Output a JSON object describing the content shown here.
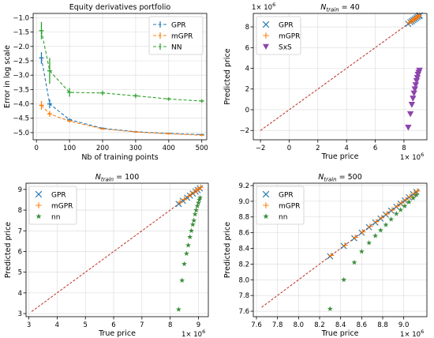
{
  "chart_data": [
    {
      "type": "line",
      "title": "Equity derivatives portfolio",
      "xlabel": "Nb of training points",
      "ylabel": "Error in log scale",
      "xlim": [
        -10,
        515
      ],
      "ylim": [
        -5.25,
        -0.85
      ],
      "xticks": [
        0,
        100,
        200,
        300,
        400,
        500
      ],
      "yticks": [
        -5.0,
        -4.5,
        -4.0,
        -3.5,
        -3.0,
        -2.5,
        -2.0,
        -1.5,
        -1.0
      ],
      "ytick_labels": [
        "−5.0",
        "−4.5",
        "−4.0",
        "−3.5",
        "−3.0",
        "−2.5",
        "−2.0",
        "−1.5",
        "−1.0"
      ],
      "grid": true,
      "legend_position": "top-right",
      "series": [
        {
          "name": "GPR",
          "color": "#1f77b4",
          "x": [
            15,
            40,
            100,
            200,
            300,
            400,
            500
          ],
          "y": [
            -2.4,
            -4.0,
            -4.55,
            -4.85,
            -4.97,
            -5.03,
            -5.07
          ],
          "err": [
            0.2,
            0.15,
            0.05,
            0.03,
            0.03,
            0.03,
            0.03
          ]
        },
        {
          "name": "mGPR",
          "color": "#ff7f0e",
          "x": [
            15,
            40,
            100,
            200,
            300,
            400,
            500
          ],
          "y": [
            -4.05,
            -4.35,
            -4.6,
            -4.87,
            -4.98,
            -5.04,
            -5.09
          ],
          "err": [
            0.15,
            0.1,
            0.05,
            0.03,
            0.03,
            0.03,
            0.03
          ]
        },
        {
          "name": "NN",
          "color": "#2ca02c",
          "x": [
            15,
            40,
            100,
            200,
            300,
            400,
            500
          ],
          "y": [
            -1.45,
            -2.85,
            -3.6,
            -3.62,
            -3.72,
            -3.83,
            -3.9
          ],
          "err": [
            0.3,
            0.45,
            0.15,
            0.08,
            0.08,
            0.06,
            0.06
          ]
        }
      ]
    },
    {
      "type": "scatter",
      "title_main": "N",
      "title_sub": "train",
      "title_rest": " = 40",
      "xlabel": "True price",
      "ylabel": "Predicted price",
      "xlim": [
        -2.5,
        9.6
      ],
      "ylim": [
        -2.9,
        9.3
      ],
      "xticks": [
        -2,
        0,
        2,
        4,
        6,
        8
      ],
      "xtick_labels": [
        "−2",
        "0",
        "2",
        "4",
        "6",
        "8"
      ],
      "yticks": [
        -2,
        0,
        2,
        4,
        6,
        8
      ],
      "ytick_labels": [
        "−2",
        "0",
        "2",
        "4",
        "6",
        "8"
      ],
      "multiplier_x": "1",
      "multiplier_y": "1",
      "multiplier_base": "× 10",
      "multiplier_exp": "6",
      "grid": true,
      "legend_position": "top-left",
      "diagonal": [
        -2,
        9
      ],
      "series": [
        {
          "name": "GPR",
          "marker": "x",
          "color": "#1f77b4",
          "x": [
            8.3,
            8.45,
            8.55,
            8.65,
            8.75,
            8.85,
            8.95,
            9.05,
            9.1
          ],
          "y": [
            8.3,
            8.45,
            8.55,
            8.65,
            8.75,
            8.85,
            8.95,
            9.05,
            9.1
          ]
        },
        {
          "name": "mGPR",
          "marker": "+",
          "color": "#ff7f0e",
          "x": [
            8.35,
            8.5,
            8.6,
            8.7,
            8.8,
            8.9,
            9.0,
            9.08
          ],
          "y": [
            8.4,
            8.55,
            8.62,
            8.72,
            8.82,
            8.92,
            9.02,
            9.1
          ]
        },
        {
          "name": "SxS",
          "marker": "v",
          "color": "#8e44ad",
          "x": [
            8.3,
            8.45,
            8.55,
            8.63,
            8.7,
            8.76,
            8.82,
            8.88,
            8.93,
            8.98,
            9.03,
            9.08
          ],
          "y": [
            -1.7,
            -0.4,
            0.5,
            1.1,
            1.6,
            2.0,
            2.4,
            2.8,
            3.1,
            3.4,
            3.6,
            3.8
          ]
        }
      ]
    },
    {
      "type": "scatter",
      "title_main": "N",
      "title_sub": "train",
      "title_rest": " = 100",
      "xlabel": "True price",
      "ylabel": "Predicted price",
      "xlim": [
        2.9,
        9.35
      ],
      "ylim": [
        2.85,
        9.3
      ],
      "xticks": [
        3,
        4,
        5,
        6,
        7,
        8,
        9
      ],
      "yticks": [
        3,
        4,
        5,
        6,
        7,
        8,
        9
      ],
      "multiplier_x": "1",
      "multiplier_base": "× 10",
      "multiplier_exp": "6",
      "grid": true,
      "legend_position": "top-left",
      "diagonal": [
        3.1,
        9.1
      ],
      "series": [
        {
          "name": "GPR",
          "marker": "x",
          "color": "#1f77b4",
          "x": [
            8.3,
            8.45,
            8.6,
            8.7,
            8.8,
            8.9,
            8.97,
            9.05
          ],
          "y": [
            8.3,
            8.45,
            8.6,
            8.7,
            8.8,
            8.9,
            8.97,
            9.05
          ]
        },
        {
          "name": "mGPR",
          "marker": "+",
          "color": "#ff7f0e",
          "x": [
            8.35,
            8.5,
            8.65,
            8.75,
            8.85,
            8.95,
            9.0,
            9.08
          ],
          "y": [
            8.38,
            8.52,
            8.67,
            8.77,
            8.87,
            8.97,
            9.02,
            9.1
          ]
        },
        {
          "name": "nn",
          "marker": "*",
          "color": "#3d8f3d",
          "x": [
            8.3,
            8.42,
            8.5,
            8.58,
            8.64,
            8.7,
            8.75,
            8.8,
            8.84,
            8.88,
            8.92,
            8.96,
            9.0,
            9.03,
            9.06
          ],
          "y": [
            3.2,
            4.6,
            5.4,
            5.9,
            6.3,
            6.7,
            7.0,
            7.3,
            7.5,
            7.8,
            8.0,
            8.2,
            8.35,
            8.5,
            8.6
          ]
        }
      ]
    },
    {
      "type": "scatter",
      "title_main": "N",
      "title_sub": "train",
      "title_rest": " = 500",
      "xlabel": "True price",
      "ylabel": "Predicted price",
      "xlim": [
        7.57,
        9.22
      ],
      "ylim": [
        7.53,
        9.23
      ],
      "xticks": [
        7.6,
        7.8,
        8.0,
        8.2,
        8.4,
        8.6,
        8.8,
        9.0
      ],
      "xtick_labels": [
        "7.6",
        "7.8",
        "8.0",
        "8.2",
        "8.4",
        "8.6",
        "8.8",
        "9.0"
      ],
      "yticks": [
        7.6,
        7.8,
        8.0,
        8.2,
        8.4,
        8.6,
        8.8,
        9.0,
        9.2
      ],
      "ytick_labels": [
        "7.6",
        "7.8",
        "8.0",
        "8.2",
        "8.4",
        "8.6",
        "8.8",
        "9.0",
        "9.2"
      ],
      "multiplier_x": "1",
      "multiplier_base": "× 10",
      "multiplier_exp": "6",
      "grid": true,
      "legend_position": "top-left",
      "diagonal": [
        7.65,
        9.15
      ],
      "series": [
        {
          "name": "GPR",
          "marker": "x",
          "color": "#1f77b4",
          "x": [
            8.3,
            8.43,
            8.53,
            8.6,
            8.67,
            8.73,
            8.78,
            8.83,
            8.88,
            8.93,
            8.97,
            9.01,
            9.05,
            9.09,
            9.12
          ],
          "y": [
            8.3,
            8.43,
            8.53,
            8.6,
            8.67,
            8.73,
            8.78,
            8.83,
            8.88,
            8.93,
            8.97,
            9.01,
            9.05,
            9.09,
            9.12
          ]
        },
        {
          "name": "mGPR",
          "marker": "+",
          "color": "#ff7f0e",
          "x": [
            8.31,
            8.44,
            8.54,
            8.61,
            8.68,
            8.74,
            8.79,
            8.84,
            8.89,
            8.94,
            8.98,
            9.02,
            9.06,
            9.1,
            9.13
          ],
          "y": [
            8.31,
            8.44,
            8.54,
            8.61,
            8.68,
            8.74,
            8.79,
            8.84,
            8.89,
            8.94,
            8.98,
            9.02,
            9.06,
            9.1,
            9.13
          ]
        },
        {
          "name": "nn",
          "marker": "*",
          "color": "#3d8f3d",
          "x": [
            8.3,
            8.43,
            8.53,
            8.6,
            8.67,
            8.73,
            8.78,
            8.83,
            8.88,
            8.93,
            8.97,
            9.01,
            9.05,
            9.09,
            9.12
          ],
          "y": [
            7.63,
            8.0,
            8.22,
            8.36,
            8.47,
            8.56,
            8.63,
            8.7,
            8.77,
            8.84,
            8.89,
            8.94,
            8.99,
            9.04,
            9.08
          ]
        }
      ]
    }
  ]
}
